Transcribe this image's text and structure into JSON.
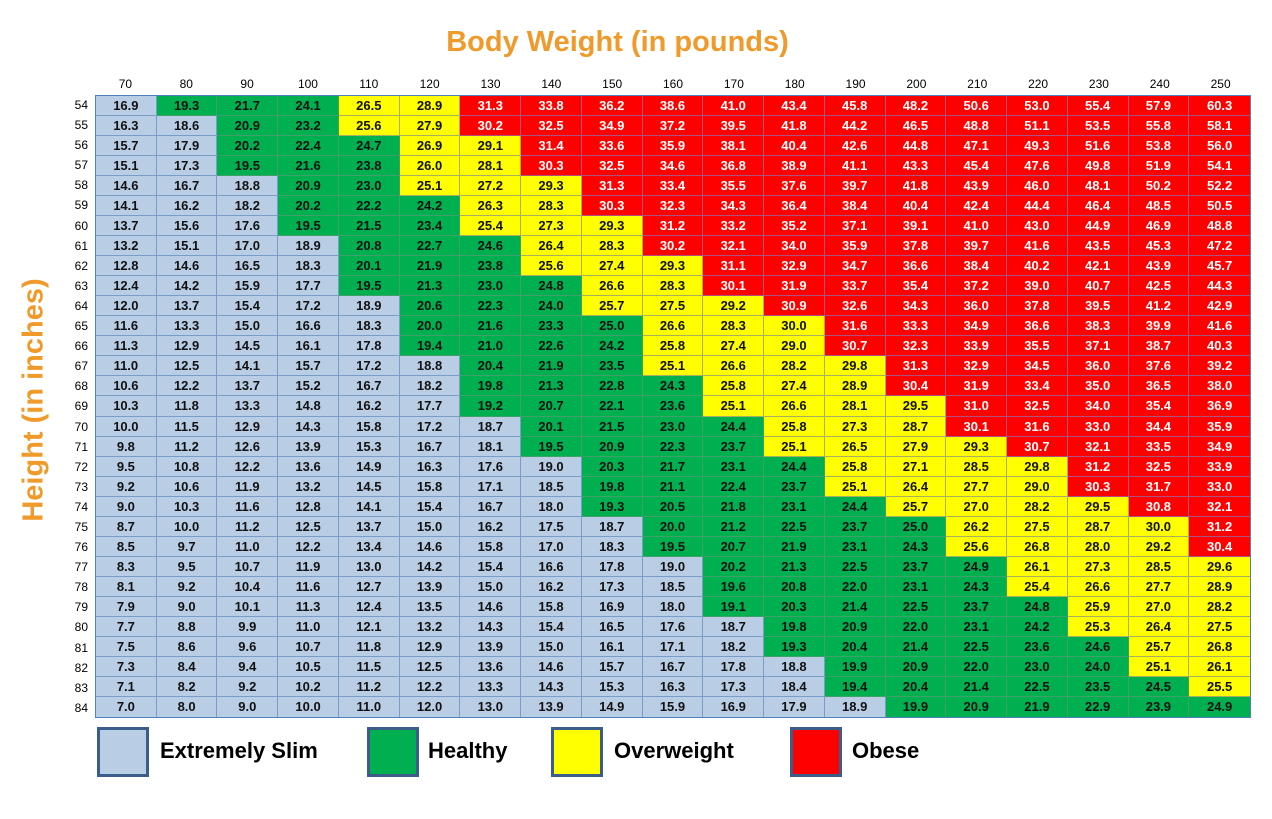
{
  "chart_data": {
    "type": "table",
    "title": "Body Weight (in pounds)",
    "xlabel": "Body Weight (in pounds)",
    "ylabel": "Height (in inches)",
    "columns": [
      "70",
      "80",
      "90",
      "100",
      "110",
      "120",
      "130",
      "140",
      "150",
      "160",
      "170",
      "180",
      "190",
      "200",
      "210",
      "220",
      "230",
      "240",
      "250"
    ],
    "legend": [
      {
        "code": "S",
        "label": "Extremely Slim",
        "color": "#b9cde5"
      },
      {
        "code": "G",
        "label": "Healthy",
        "color": "#00b050"
      },
      {
        "code": "Y",
        "label": "Overweight",
        "color": "#ffff00"
      },
      {
        "code": "R",
        "label": "Obese",
        "color": "#ff0000"
      }
    ],
    "rows": [
      {
        "height": "54",
        "cat": "SGGGYYRRRRRRRRRRRRR",
        "values": [
          "16.9",
          "19.3",
          "21.7",
          "24.1",
          "26.5",
          "28.9",
          "31.3",
          "33.8",
          "36.2",
          "38.6",
          "41.0",
          "43.4",
          "45.8",
          "48.2",
          "50.6",
          "53.0",
          "55.4",
          "57.9",
          "60.3"
        ]
      },
      {
        "height": "55",
        "cat": "SSGGYYRRRRRRRRRRRRR",
        "values": [
          "16.3",
          "18.6",
          "20.9",
          "23.2",
          "25.6",
          "27.9",
          "30.2",
          "32.5",
          "34.9",
          "37.2",
          "39.5",
          "41.8",
          "44.2",
          "46.5",
          "48.8",
          "51.1",
          "53.5",
          "55.8",
          "58.1"
        ]
      },
      {
        "height": "56",
        "cat": "SSGGGYYRRRRRRRRRRRR",
        "values": [
          "15.7",
          "17.9",
          "20.2",
          "22.4",
          "24.7",
          "26.9",
          "29.1",
          "31.4",
          "33.6",
          "35.9",
          "38.1",
          "40.4",
          "42.6",
          "44.8",
          "47.1",
          "49.3",
          "51.6",
          "53.8",
          "56.0"
        ]
      },
      {
        "height": "57",
        "cat": "SSGGGYYRRRRRRRRRRRR",
        "values": [
          "15.1",
          "17.3",
          "19.5",
          "21.6",
          "23.8",
          "26.0",
          "28.1",
          "30.3",
          "32.5",
          "34.6",
          "36.8",
          "38.9",
          "41.1",
          "43.3",
          "45.4",
          "47.6",
          "49.8",
          "51.9",
          "54.1"
        ]
      },
      {
        "height": "58",
        "cat": "SSSGGYYYRRRRRRRRRRR",
        "values": [
          "14.6",
          "16.7",
          "18.8",
          "20.9",
          "23.0",
          "25.1",
          "27.2",
          "29.3",
          "31.3",
          "33.4",
          "35.5",
          "37.6",
          "39.7",
          "41.8",
          "43.9",
          "46.0",
          "48.1",
          "50.2",
          "52.2"
        ]
      },
      {
        "height": "59",
        "cat": "SSSGGGYYRRRRRRRRRRR",
        "values": [
          "14.1",
          "16.2",
          "18.2",
          "20.2",
          "22.2",
          "24.2",
          "26.3",
          "28.3",
          "30.3",
          "32.3",
          "34.3",
          "36.4",
          "38.4",
          "40.4",
          "42.4",
          "44.4",
          "46.4",
          "48.5",
          "50.5"
        ]
      },
      {
        "height": "60",
        "cat": "SSSGGGYYYRRRRRRRRRR",
        "values": [
          "13.7",
          "15.6",
          "17.6",
          "19.5",
          "21.5",
          "23.4",
          "25.4",
          "27.3",
          "29.3",
          "31.2",
          "33.2",
          "35.2",
          "37.1",
          "39.1",
          "41.0",
          "43.0",
          "44.9",
          "46.9",
          "48.8"
        ]
      },
      {
        "height": "61",
        "cat": "SSSSGGGYYRRRRRRRRRR",
        "values": [
          "13.2",
          "15.1",
          "17.0",
          "18.9",
          "20.8",
          "22.7",
          "24.6",
          "26.4",
          "28.3",
          "30.2",
          "32.1",
          "34.0",
          "35.9",
          "37.8",
          "39.7",
          "41.6",
          "43.5",
          "45.3",
          "47.2"
        ]
      },
      {
        "height": "62",
        "cat": "SSSSGGGYYYRRRRRRRRR",
        "values": [
          "12.8",
          "14.6",
          "16.5",
          "18.3",
          "20.1",
          "21.9",
          "23.8",
          "25.6",
          "27.4",
          "29.3",
          "31.1",
          "32.9",
          "34.7",
          "36.6",
          "38.4",
          "40.2",
          "42.1",
          "43.9",
          "45.7"
        ]
      },
      {
        "height": "63",
        "cat": "SSSSGGGGYYRRRRRRRRR",
        "values": [
          "12.4",
          "14.2",
          "15.9",
          "17.7",
          "19.5",
          "21.3",
          "23.0",
          "24.8",
          "26.6",
          "28.3",
          "30.1",
          "31.9",
          "33.7",
          "35.4",
          "37.2",
          "39.0",
          "40.7",
          "42.5",
          "44.3"
        ]
      },
      {
        "height": "64",
        "cat": "SSSSSGGGYYYRRRRRRRR",
        "values": [
          "12.0",
          "13.7",
          "15.4",
          "17.2",
          "18.9",
          "20.6",
          "22.3",
          "24.0",
          "25.7",
          "27.5",
          "29.2",
          "30.9",
          "32.6",
          "34.3",
          "36.0",
          "37.8",
          "39.5",
          "41.2",
          "42.9"
        ]
      },
      {
        "height": "65",
        "cat": "SSSSSGGGGYYYRRRRRRR",
        "values": [
          "11.6",
          "13.3",
          "15.0",
          "16.6",
          "18.3",
          "20.0",
          "21.6",
          "23.3",
          "25.0",
          "26.6",
          "28.3",
          "30.0",
          "31.6",
          "33.3",
          "34.9",
          "36.6",
          "38.3",
          "39.9",
          "41.6"
        ]
      },
      {
        "height": "66",
        "cat": "SSSSSGGGGYYYRRRRRRR",
        "values": [
          "11.3",
          "12.9",
          "14.5",
          "16.1",
          "17.8",
          "19.4",
          "21.0",
          "22.6",
          "24.2",
          "25.8",
          "27.4",
          "29.0",
          "30.7",
          "32.3",
          "33.9",
          "35.5",
          "37.1",
          "38.7",
          "40.3"
        ]
      },
      {
        "height": "67",
        "cat": "SSSSSSGGGYYYYRRRRRR",
        "values": [
          "11.0",
          "12.5",
          "14.1",
          "15.7",
          "17.2",
          "18.8",
          "20.4",
          "21.9",
          "23.5",
          "25.1",
          "26.6",
          "28.2",
          "29.8",
          "31.3",
          "32.9",
          "34.5",
          "36.0",
          "37.6",
          "39.2"
        ]
      },
      {
        "height": "68",
        "cat": "SSSSSSGGGGYYYRRRRRR",
        "values": [
          "10.6",
          "12.2",
          "13.7",
          "15.2",
          "16.7",
          "18.2",
          "19.8",
          "21.3",
          "22.8",
          "24.3",
          "25.8",
          "27.4",
          "28.9",
          "30.4",
          "31.9",
          "33.4",
          "35.0",
          "36.5",
          "38.0"
        ]
      },
      {
        "height": "69",
        "cat": "SSSSSSGGGGYYYYRRRRR",
        "values": [
          "10.3",
          "11.8",
          "13.3",
          "14.8",
          "16.2",
          "17.7",
          "19.2",
          "20.7",
          "22.1",
          "23.6",
          "25.1",
          "26.6",
          "28.1",
          "29.5",
          "31.0",
          "32.5",
          "34.0",
          "35.4",
          "36.9"
        ]
      },
      {
        "height": "70",
        "cat": "SSSSSSSGGGGYYYRRRRR",
        "values": [
          "10.0",
          "11.5",
          "12.9",
          "14.3",
          "15.8",
          "17.2",
          "18.7",
          "20.1",
          "21.5",
          "23.0",
          "24.4",
          "25.8",
          "27.3",
          "28.7",
          "30.1",
          "31.6",
          "33.0",
          "34.4",
          "35.9"
        ]
      },
      {
        "height": "71",
        "cat": "SSSSSSSGGGGYYYYRRRR",
        "values": [
          "9.8",
          "11.2",
          "12.6",
          "13.9",
          "15.3",
          "16.7",
          "18.1",
          "19.5",
          "20.9",
          "22.3",
          "23.7",
          "25.1",
          "26.5",
          "27.9",
          "29.3",
          "30.7",
          "32.1",
          "33.5",
          "34.9"
        ]
      },
      {
        "height": "72",
        "cat": "SSSSSSSSGGGGYYYYRRR",
        "values": [
          "9.5",
          "10.8",
          "12.2",
          "13.6",
          "14.9",
          "16.3",
          "17.6",
          "19.0",
          "20.3",
          "21.7",
          "23.1",
          "24.4",
          "25.8",
          "27.1",
          "28.5",
          "29.8",
          "31.2",
          "32.5",
          "33.9"
        ]
      },
      {
        "height": "73",
        "cat": "SSSSSSSSGGGGYYYYRRR",
        "values": [
          "9.2",
          "10.6",
          "11.9",
          "13.2",
          "14.5",
          "15.8",
          "17.1",
          "18.5",
          "19.8",
          "21.1",
          "22.4",
          "23.7",
          "25.1",
          "26.4",
          "27.7",
          "29.0",
          "30.3",
          "31.7",
          "33.0"
        ]
      },
      {
        "height": "74",
        "cat": "SSSSSSSSGGGGGYYYYRR",
        "values": [
          "9.0",
          "10.3",
          "11.6",
          "12.8",
          "14.1",
          "15.4",
          "16.7",
          "18.0",
          "19.3",
          "20.5",
          "21.8",
          "23.1",
          "24.4",
          "25.7",
          "27.0",
          "28.2",
          "29.5",
          "30.8",
          "32.1"
        ]
      },
      {
        "height": "75",
        "cat": "SSSSSSSSSGGGGGYYYYR",
        "values": [
          "8.7",
          "10.0",
          "11.2",
          "12.5",
          "13.7",
          "15.0",
          "16.2",
          "17.5",
          "18.7",
          "20.0",
          "21.2",
          "22.5",
          "23.7",
          "25.0",
          "26.2",
          "27.5",
          "28.7",
          "30.0",
          "31.2"
        ]
      },
      {
        "height": "76",
        "cat": "SSSSSSSSSGGGGGYYYYR",
        "values": [
          "8.5",
          "9.7",
          "11.0",
          "12.2",
          "13.4",
          "14.6",
          "15.8",
          "17.0",
          "18.3",
          "19.5",
          "20.7",
          "21.9",
          "23.1",
          "24.3",
          "25.6",
          "26.8",
          "28.0",
          "29.2",
          "30.4"
        ]
      },
      {
        "height": "77",
        "cat": "SSSSSSSSSSGGGGGYYYY",
        "values": [
          "8.3",
          "9.5",
          "10.7",
          "11.9",
          "13.0",
          "14.2",
          "15.4",
          "16.6",
          "17.8",
          "19.0",
          "20.2",
          "21.3",
          "22.5",
          "23.7",
          "24.9",
          "26.1",
          "27.3",
          "28.5",
          "29.6"
        ]
      },
      {
        "height": "78",
        "cat": "SSSSSSSSSSGGGGGYYYY",
        "values": [
          "8.1",
          "9.2",
          "10.4",
          "11.6",
          "12.7",
          "13.9",
          "15.0",
          "16.2",
          "17.3",
          "18.5",
          "19.6",
          "20.8",
          "22.0",
          "23.1",
          "24.3",
          "25.4",
          "26.6",
          "27.7",
          "28.9"
        ]
      },
      {
        "height": "79",
        "cat": "SSSSSSSSSSGGGGGGYYY",
        "values": [
          "7.9",
          "9.0",
          "10.1",
          "11.3",
          "12.4",
          "13.5",
          "14.6",
          "15.8",
          "16.9",
          "18.0",
          "19.1",
          "20.3",
          "21.4",
          "22.5",
          "23.7",
          "24.8",
          "25.9",
          "27.0",
          "28.2"
        ]
      },
      {
        "height": "80",
        "cat": "SSSSSSSSSSSGGGGGYYY",
        "values": [
          "7.7",
          "8.8",
          "9.9",
          "11.0",
          "12.1",
          "13.2",
          "14.3",
          "15.4",
          "16.5",
          "17.6",
          "18.7",
          "19.8",
          "20.9",
          "22.0",
          "23.1",
          "24.2",
          "25.3",
          "26.4",
          "27.5"
        ]
      },
      {
        "height": "81",
        "cat": "SSSSSSSSSSSGGGGGGYY",
        "values": [
          "7.5",
          "8.6",
          "9.6",
          "10.7",
          "11.8",
          "12.9",
          "13.9",
          "15.0",
          "16.1",
          "17.1",
          "18.2",
          "19.3",
          "20.4",
          "21.4",
          "22.5",
          "23.6",
          "24.6",
          "25.7",
          "26.8"
        ]
      },
      {
        "height": "82",
        "cat": "SSSSSSSSSSSSGGGGGYY",
        "values": [
          "7.3",
          "8.4",
          "9.4",
          "10.5",
          "11.5",
          "12.5",
          "13.6",
          "14.6",
          "15.7",
          "16.7",
          "17.8",
          "18.8",
          "19.9",
          "20.9",
          "22.0",
          "23.0",
          "24.0",
          "25.1",
          "26.1"
        ]
      },
      {
        "height": "83",
        "cat": "SSSSSSSSSSSSGGGGGGY",
        "values": [
          "7.1",
          "8.2",
          "9.2",
          "10.2",
          "11.2",
          "12.2",
          "13.3",
          "14.3",
          "15.3",
          "16.3",
          "17.3",
          "18.4",
          "19.4",
          "20.4",
          "21.4",
          "22.5",
          "23.5",
          "24.5",
          "25.5"
        ]
      },
      {
        "height": "84",
        "cat": "SSSSSSSSSSSSSGGGGGG",
        "values": [
          "7.0",
          "8.0",
          "9.0",
          "10.0",
          "11.0",
          "12.0",
          "13.0",
          "13.9",
          "14.9",
          "15.9",
          "16.9",
          "17.9",
          "18.9",
          "19.9",
          "20.9",
          "21.9",
          "22.9",
          "23.9",
          "24.9"
        ]
      }
    ]
  }
}
